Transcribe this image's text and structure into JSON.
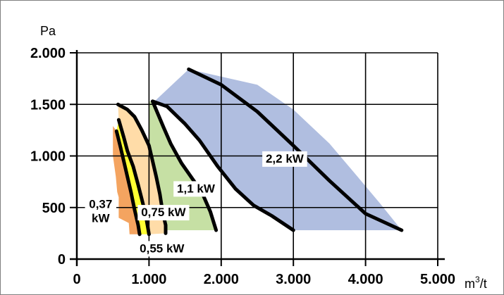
{
  "chart_data": {
    "type": "area",
    "xlabel": "m3/t",
    "xlabel_base": "m",
    "xlabel_sup": "3",
    "xlabel_tail": "/t",
    "ylabel": "Pa",
    "xlim": [
      0,
      5000
    ],
    "ylim": [
      0,
      2000
    ],
    "x_ticks": [
      0,
      1000,
      2000,
      3000,
      4000,
      5000
    ],
    "x_tick_labels": [
      "0",
      "1.000",
      "2.000",
      "3.000",
      "4.000",
      "5.000"
    ],
    "y_ticks": [
      0,
      500,
      1000,
      1500,
      2000
    ],
    "y_tick_labels": [
      "0",
      "500",
      "1.000",
      "1.500",
      "2.000"
    ],
    "grid": true,
    "series": [
      {
        "name": "0,37 kW",
        "label_lines": [
          "0,37",
          "kW"
        ],
        "color": "#F4A460",
        "region": [
          [
            500,
            1290
          ],
          [
            550,
            1240
          ],
          [
            600,
            1100
          ],
          [
            650,
            950
          ],
          [
            700,
            800
          ],
          [
            750,
            650
          ],
          [
            800,
            480
          ],
          [
            850,
            330
          ],
          [
            870,
            240
          ],
          [
            800,
            240
          ],
          [
            730,
            240
          ],
          [
            720,
            350
          ],
          [
            580,
            400
          ],
          [
            580,
            600
          ],
          [
            560,
            650
          ],
          [
            540,
            800
          ],
          [
            500,
            1000
          ]
        ],
        "curve": [
          [
            550,
            1240
          ],
          [
            600,
            1100
          ],
          [
            650,
            950
          ],
          [
            700,
            800
          ],
          [
            750,
            650
          ],
          [
            800,
            480
          ],
          [
            850,
            330
          ],
          [
            870,
            240
          ]
        ],
        "label_at": [
          330,
          460
        ]
      },
      {
        "name": "0,55 kW",
        "label_lines": [
          "0,55 kW"
        ],
        "color": "#FFFF33",
        "region": [
          [
            550,
            1240
          ],
          [
            580,
            1350
          ],
          [
            650,
            1180
          ],
          [
            700,
            1050
          ],
          [
            780,
            900
          ],
          [
            850,
            720
          ],
          [
            900,
            580
          ],
          [
            950,
            440
          ],
          [
            980,
            320
          ],
          [
            1000,
            240
          ],
          [
            870,
            240
          ],
          [
            850,
            330
          ],
          [
            800,
            480
          ],
          [
            750,
            650
          ],
          [
            700,
            800
          ],
          [
            650,
            950
          ],
          [
            600,
            1100
          ]
        ],
        "curve": [
          [
            580,
            1350
          ],
          [
            650,
            1180
          ],
          [
            700,
            1050
          ],
          [
            780,
            900
          ],
          [
            850,
            720
          ],
          [
            900,
            580
          ],
          [
            950,
            440
          ],
          [
            980,
            320
          ],
          [
            1000,
            240
          ]
        ],
        "label_at": [
          1180,
          100
        ]
      },
      {
        "name": "0,75 kW",
        "label_lines": [
          "0,75 kW"
        ],
        "color": "#FFDCA8",
        "region": [
          [
            580,
            1350
          ],
          [
            570,
            1500
          ],
          [
            700,
            1450
          ],
          [
            800,
            1380
          ],
          [
            900,
            1250
          ],
          [
            1000,
            1100
          ],
          [
            1050,
            950
          ],
          [
            1100,
            800
          ],
          [
            1150,
            630
          ],
          [
            1190,
            450
          ],
          [
            1230,
            330
          ],
          [
            1230,
            250
          ],
          [
            1000,
            240
          ],
          [
            980,
            320
          ],
          [
            950,
            440
          ],
          [
            900,
            580
          ],
          [
            850,
            720
          ],
          [
            780,
            900
          ],
          [
            700,
            1050
          ],
          [
            650,
            1180
          ]
        ],
        "curve": [
          [
            570,
            1500
          ],
          [
            700,
            1450
          ],
          [
            800,
            1380
          ],
          [
            900,
            1250
          ],
          [
            1000,
            1100
          ],
          [
            1050,
            950
          ],
          [
            1100,
            800
          ],
          [
            1150,
            630
          ],
          [
            1190,
            450
          ],
          [
            1230,
            330
          ],
          [
            1230,
            250
          ]
        ],
        "label_at": [
          1200,
          450
        ]
      },
      {
        "name": "1,1 kW",
        "label_lines": [
          "1,1 kW"
        ],
        "color": "#C6E0A4",
        "region": [
          [
            1000,
            1530
          ],
          [
            1000,
            1100
          ],
          [
            1050,
            950
          ],
          [
            1100,
            800
          ],
          [
            1150,
            630
          ],
          [
            1190,
            450
          ],
          [
            1230,
            330
          ],
          [
            1230,
            280
          ],
          [
            1930,
            280
          ],
          [
            1850,
            460
          ],
          [
            1730,
            650
          ],
          [
            1600,
            780
          ],
          [
            1450,
            930
          ],
          [
            1300,
            1120
          ],
          [
            1200,
            1280
          ],
          [
            1050,
            1530
          ]
        ],
        "curve": [
          [
            1050,
            1530
          ],
          [
            1200,
            1280
          ],
          [
            1300,
            1120
          ],
          [
            1450,
            930
          ],
          [
            1600,
            780
          ],
          [
            1730,
            650
          ],
          [
            1850,
            460
          ],
          [
            1930,
            280
          ]
        ],
        "label_at": [
          1650,
          680
        ]
      },
      {
        "name": "2,2 kW",
        "label_lines": [
          "2,2 kW"
        ],
        "color": "#B0BEE0",
        "region": [
          [
            1550,
            1840
          ],
          [
            1000,
            1480
          ],
          [
            1050,
            1530
          ],
          [
            1250,
            1480
          ],
          [
            1500,
            1310
          ],
          [
            1700,
            1150
          ],
          [
            1950,
            900
          ],
          [
            2200,
            680
          ],
          [
            2450,
            520
          ],
          [
            2700,
            420
          ],
          [
            3000,
            280
          ],
          [
            4500,
            280
          ],
          [
            4200,
            540
          ],
          [
            3900,
            790
          ],
          [
            3500,
            1120
          ],
          [
            3000,
            1450
          ],
          [
            2500,
            1690
          ]
        ],
        "curve": [
          [
            1050,
            1530
          ],
          [
            1250,
            1480
          ],
          [
            1500,
            1310
          ],
          [
            1700,
            1150
          ],
          [
            1950,
            900
          ],
          [
            2200,
            680
          ],
          [
            2450,
            520
          ],
          [
            2700,
            420
          ],
          [
            3000,
            280
          ]
        ],
        "curve2": [
          [
            1550,
            1840
          ],
          [
            2000,
            1690
          ],
          [
            2500,
            1430
          ],
          [
            3000,
            1100
          ],
          [
            3500,
            760
          ],
          [
            4000,
            440
          ],
          [
            4500,
            280
          ]
        ],
        "label_at": [
          2880,
          970
        ]
      }
    ]
  }
}
